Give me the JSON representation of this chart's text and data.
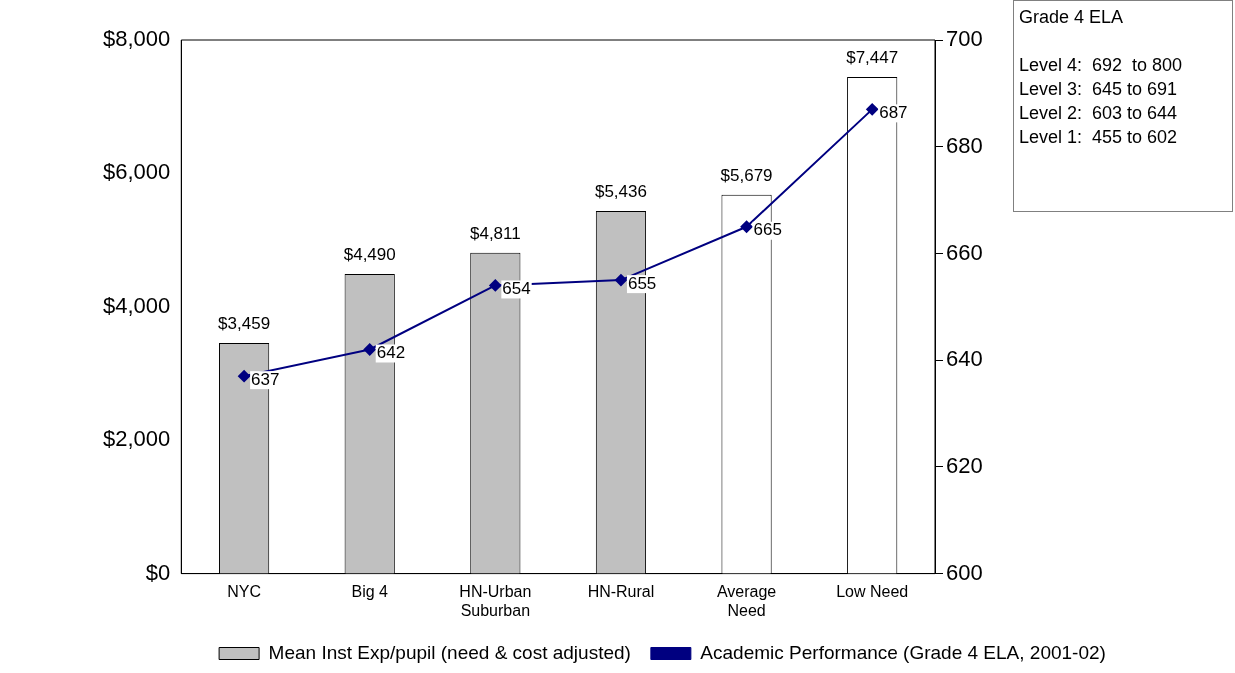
{
  "chart_data": {
    "type": "bar",
    "categories": [
      "NYC",
      "Big 4",
      "HN-Urban\nSuburban",
      "HN-Rural",
      "Average\nNeed",
      "Low Need"
    ],
    "series": [
      {
        "name": "Mean Inst Exp/pupil (need & cost adjusted)",
        "color": "#c0c0c0",
        "colors": [
          "#c0c0c0",
          "#c0c0c0",
          "#c0c0c0",
          "#c0c0c0",
          "#ffffff",
          "#ffffff"
        ],
        "values": [
          3459,
          4490,
          4811,
          5436,
          5679,
          7447
        ],
        "value_labels": [
          "$3,459",
          "$4,490",
          "$4,811",
          "$5,436",
          "$5,679",
          "$7,447"
        ]
      },
      {
        "type": "line",
        "name": "Academic Performance (Grade 4 ELA, 2001-02)",
        "color": "#000080",
        "axis": "y2",
        "marker": "diamond",
        "values": [
          637,
          642,
          654,
          655,
          665,
          687
        ],
        "value_labels": [
          "637",
          "642",
          "654",
          "655",
          "665",
          "687"
        ]
      }
    ],
    "ylim": [
      0,
      8000
    ],
    "yticks": [
      {
        "value": 0,
        "label": "$0"
      },
      {
        "value": 2000,
        "label": "$2,000"
      },
      {
        "value": 4000,
        "label": "$4,000"
      },
      {
        "value": 6000,
        "label": "$6,000"
      },
      {
        "value": 8000,
        "label": "$8,000"
      }
    ],
    "y2lim": [
      600,
      700
    ],
    "y2ticks": [
      600,
      620,
      640,
      660,
      680,
      700
    ],
    "grid": false,
    "legend": "bottom",
    "annotations": [
      "Grade 4 ELA",
      "Level 4:  692  to 800",
      "Level 3:  645 to 691",
      "Level 2:  603 to 644",
      "Level 1:  455 to 602"
    ]
  }
}
